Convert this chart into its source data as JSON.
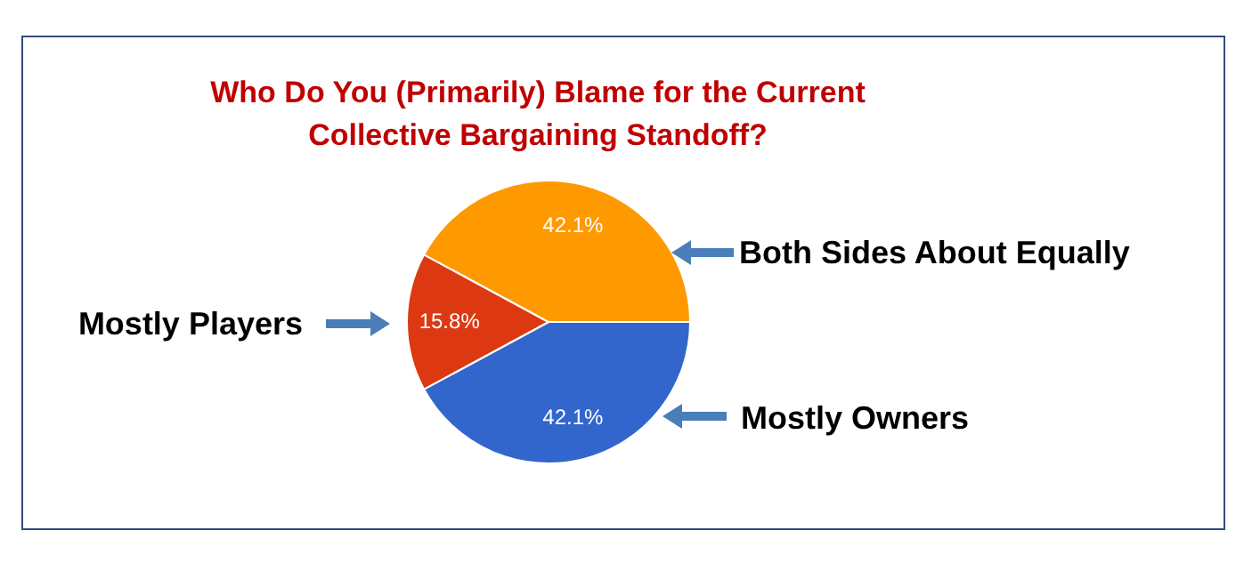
{
  "chart_data": {
    "type": "pie",
    "title": "Who Do You (Primarily) Blame for the Current\nCollective Bargaining Standoff?",
    "categories": [
      "Mostly Owners",
      "Mostly Players",
      "Both Sides About Equally"
    ],
    "values": [
      42.1,
      15.8,
      42.1
    ],
    "colors": [
      "#3366cc",
      "#dc3912",
      "#ff9900"
    ],
    "value_labels": [
      "42.1%",
      "15.8%",
      "42.1%"
    ],
    "legend": false
  }
}
